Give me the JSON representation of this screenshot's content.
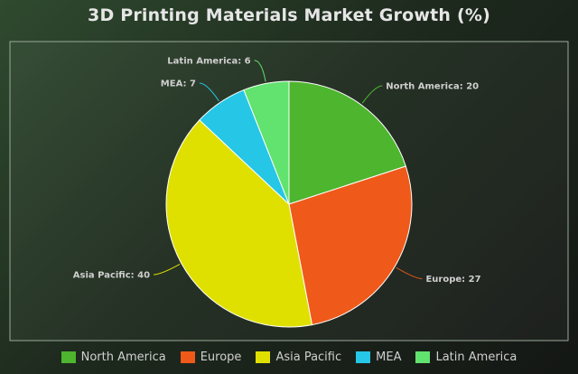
{
  "chart_data": {
    "type": "pie",
    "title": "3D Printing Materials Market Growth (%)",
    "categories": [
      "North America",
      "Europe",
      "Asia Pacific",
      "MEA",
      "Latin America"
    ],
    "values": [
      20,
      27,
      40,
      7,
      6
    ],
    "colors": [
      "#4db52e",
      "#ef5a1a",
      "#dfe000",
      "#26c6e6",
      "#62e26e"
    ],
    "legend_position": "bottom"
  }
}
